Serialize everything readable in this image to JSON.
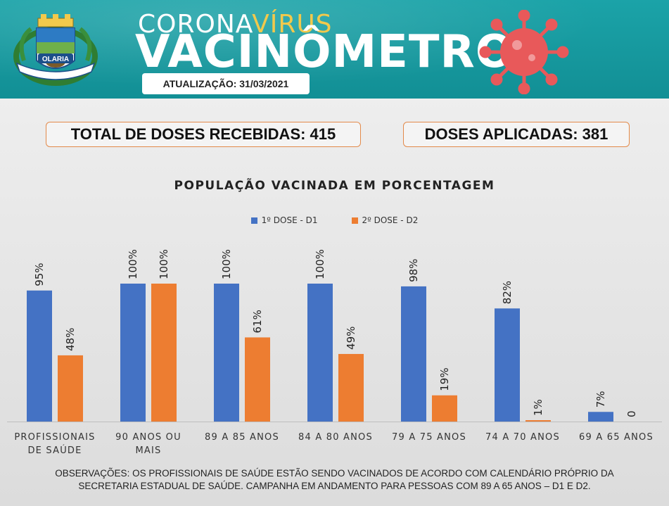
{
  "header": {
    "corona_a": "CORONA",
    "corona_b": "VÍRUS",
    "title": "VACINÔMETRO",
    "update": "ATUALIZAÇÃO: 31/03/2021",
    "crest_name": "OLARIA",
    "colors": {
      "teal": "#1ba3a8",
      "yellow": "#f2c94c",
      "virus": "#e8595a"
    }
  },
  "stats": {
    "total": "TOTAL DE DOSES RECEBIDAS: 415",
    "applied": "DOSES APLICADAS: 381"
  },
  "chart_data": {
    "type": "bar",
    "title": "POPULAÇÃO VACINADA EM PORCENTAGEM",
    "categories": [
      [
        "PROFISSIONAIS",
        "DE SAÚDE"
      ],
      [
        "90 ANOS OU",
        "MAIS"
      ],
      [
        "89 A 85 ANOS"
      ],
      [
        "84 A 80 ANOS"
      ],
      [
        "79 A 75 ANOS"
      ],
      [
        "74 A 70 ANOS"
      ],
      [
        "69 A 65 ANOS"
      ]
    ],
    "series": [
      {
        "name": "1º DOSE - D1",
        "color": "#4472c4",
        "values": [
          95,
          100,
          100,
          100,
          98,
          82,
          7
        ],
        "labels": [
          "95%",
          "100%",
          "100%",
          "100%",
          "98%",
          "82%",
          "7%"
        ]
      },
      {
        "name": "2º DOSE - D2",
        "color": "#ed7d31",
        "values": [
          48,
          100,
          61,
          49,
          19,
          1,
          0
        ],
        "labels": [
          "48%",
          "100%",
          "61%",
          "49%",
          "19%",
          "1%",
          "0"
        ]
      }
    ],
    "ylim": [
      0,
      100
    ],
    "grid": false,
    "legend": "top-center"
  },
  "notes": {
    "line1": "OBSERVAÇÕES: OS PROFISSIONAIS DE SAÚDE ESTÃO SENDO VACINADOS DE ACORDO COM CALENDÁRIO PRÓPRIO DA",
    "line2": "SECRETARIA ESTADUAL DE SAÚDE. CAMPANHA EM ANDAMENTO PARA PESSOAS COM 89 A 65 ANOS – D1 E D2."
  }
}
